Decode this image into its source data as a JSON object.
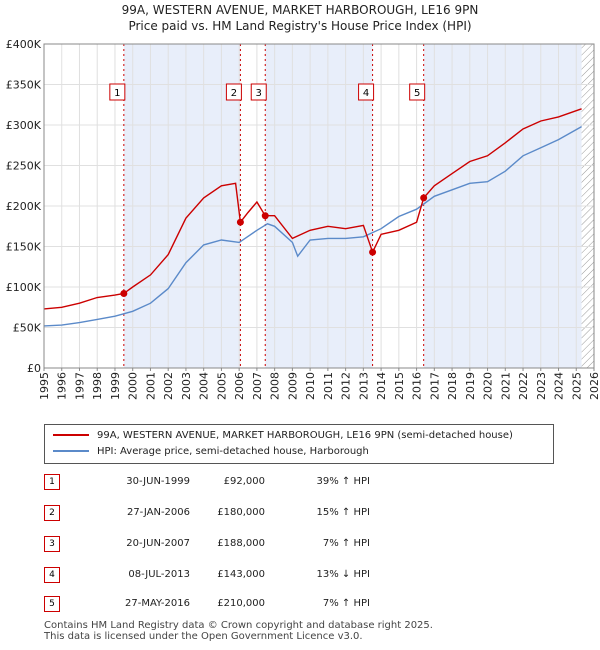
{
  "title_line1": "99A, WESTERN AVENUE, MARKET HARBOROUGH, LE16 9PN",
  "title_line2": "Price paid vs. HM Land Registry's House Price Index (HPI)",
  "legend": {
    "red_label": "99A, WESTERN AVENUE, MARKET HARBOROUGH, LE16 9PN (semi-detached house)",
    "blue_label": "HPI: Average price, semi-detached house, Harborough",
    "red_color": "#cc0000",
    "blue_color": "#5b8ac9"
  },
  "sales": [
    {
      "num": "1",
      "date": "30-JUN-1999",
      "price": "£92,000",
      "hpi": "39% ↑ HPI"
    },
    {
      "num": "2",
      "date": "27-JAN-2006",
      "price": "£180,000",
      "hpi": "15% ↑ HPI"
    },
    {
      "num": "3",
      "date": "20-JUN-2007",
      "price": "£188,000",
      "hpi": "7% ↑ HPI"
    },
    {
      "num": "4",
      "date": "08-JUL-2013",
      "price": "£143,000",
      "hpi": "13% ↓ HPI"
    },
    {
      "num": "5",
      "date": "27-MAY-2016",
      "price": "£210,000",
      "hpi": "7% ↑ HPI"
    }
  ],
  "footer_line1": "Contains HM Land Registry data © Crown copyright and database right 2025.",
  "footer_line2": "This data is licensed under the Open Government Licence v3.0.",
  "chart_data": {
    "type": "line",
    "xlim": [
      1995,
      2026
    ],
    "ylim": [
      0,
      400000
    ],
    "y_ticks": [
      0,
      50000,
      100000,
      150000,
      200000,
      250000,
      300000,
      350000,
      400000
    ],
    "y_tick_labels": [
      "£0",
      "£50K",
      "£100K",
      "£150K",
      "£200K",
      "£250K",
      "£300K",
      "£350K",
      "£400K"
    ],
    "x_tick_labels": [
      "1995",
      "1996",
      "1997",
      "1998",
      "1999",
      "2000",
      "2001",
      "2002",
      "2003",
      "2004",
      "2005",
      "2006",
      "2007",
      "2008",
      "2009",
      "2010",
      "2011",
      "2012",
      "2013",
      "2014",
      "2015",
      "2016",
      "2017",
      "2018",
      "2019",
      "2020",
      "2021",
      "2022",
      "2023",
      "2024",
      "2025",
      "2026"
    ],
    "shaded_ranges": [
      [
        1999.5,
        2006.07
      ],
      [
        2007.47,
        2013.52
      ],
      [
        2016.4,
        2025.3
      ]
    ],
    "hatched_from": 2025.3,
    "sale_markers": [
      {
        "label": "1",
        "x": 1999.5,
        "y": 92000
      },
      {
        "label": "2",
        "x": 2006.07,
        "y": 180000
      },
      {
        "label": "3",
        "x": 2007.47,
        "y": 188000
      },
      {
        "label": "4",
        "x": 2013.52,
        "y": 143000
      },
      {
        "label": "5",
        "x": 2016.4,
        "y": 210000
      }
    ],
    "series": [
      {
        "name": "99A, WESTERN AVENUE, MARKET HARBOROUGH, LE16 9PN (semi-detached house)",
        "color": "#cc0000",
        "x": [
          1995,
          1996,
          1997,
          1998,
          1999,
          1999.5,
          2000,
          2001,
          2002,
          2003,
          2004,
          2005,
          2005.8,
          2006.07,
          2006.5,
          2007,
          2007.47,
          2008,
          2009,
          2010,
          2011,
          2012,
          2013,
          2013.52,
          2014,
          2015,
          2016,
          2016.4,
          2017,
          2018,
          2019,
          2020,
          2021,
          2022,
          2023,
          2024,
          2025.3
        ],
        "y": [
          73000,
          75000,
          80000,
          87000,
          90000,
          92000,
          100000,
          115000,
          140000,
          185000,
          210000,
          225000,
          228000,
          180000,
          192000,
          205000,
          188000,
          188000,
          160000,
          170000,
          175000,
          172000,
          176000,
          143000,
          165000,
          170000,
          180000,
          210000,
          225000,
          240000,
          255000,
          262000,
          278000,
          295000,
          305000,
          310000,
          320000
        ]
      },
      {
        "name": "HPI: Average price, semi-detached house, Harborough",
        "color": "#5b8ac9",
        "x": [
          1995,
          1996,
          1997,
          1998,
          1999,
          2000,
          2001,
          2002,
          2003,
          2004,
          2005,
          2006,
          2007,
          2007.6,
          2008,
          2009,
          2009.3,
          2010,
          2011,
          2012,
          2013,
          2014,
          2015,
          2016,
          2017,
          2018,
          2019,
          2020,
          2021,
          2022,
          2023,
          2024,
          2025.3
        ],
        "y": [
          52000,
          53000,
          56000,
          60000,
          64000,
          70000,
          80000,
          98000,
          130000,
          152000,
          158000,
          155000,
          170000,
          178000,
          175000,
          155000,
          138000,
          158000,
          160000,
          160000,
          162000,
          172000,
          187000,
          196000,
          212000,
          220000,
          228000,
          230000,
          243000,
          262000,
          272000,
          282000,
          298000
        ]
      }
    ]
  }
}
